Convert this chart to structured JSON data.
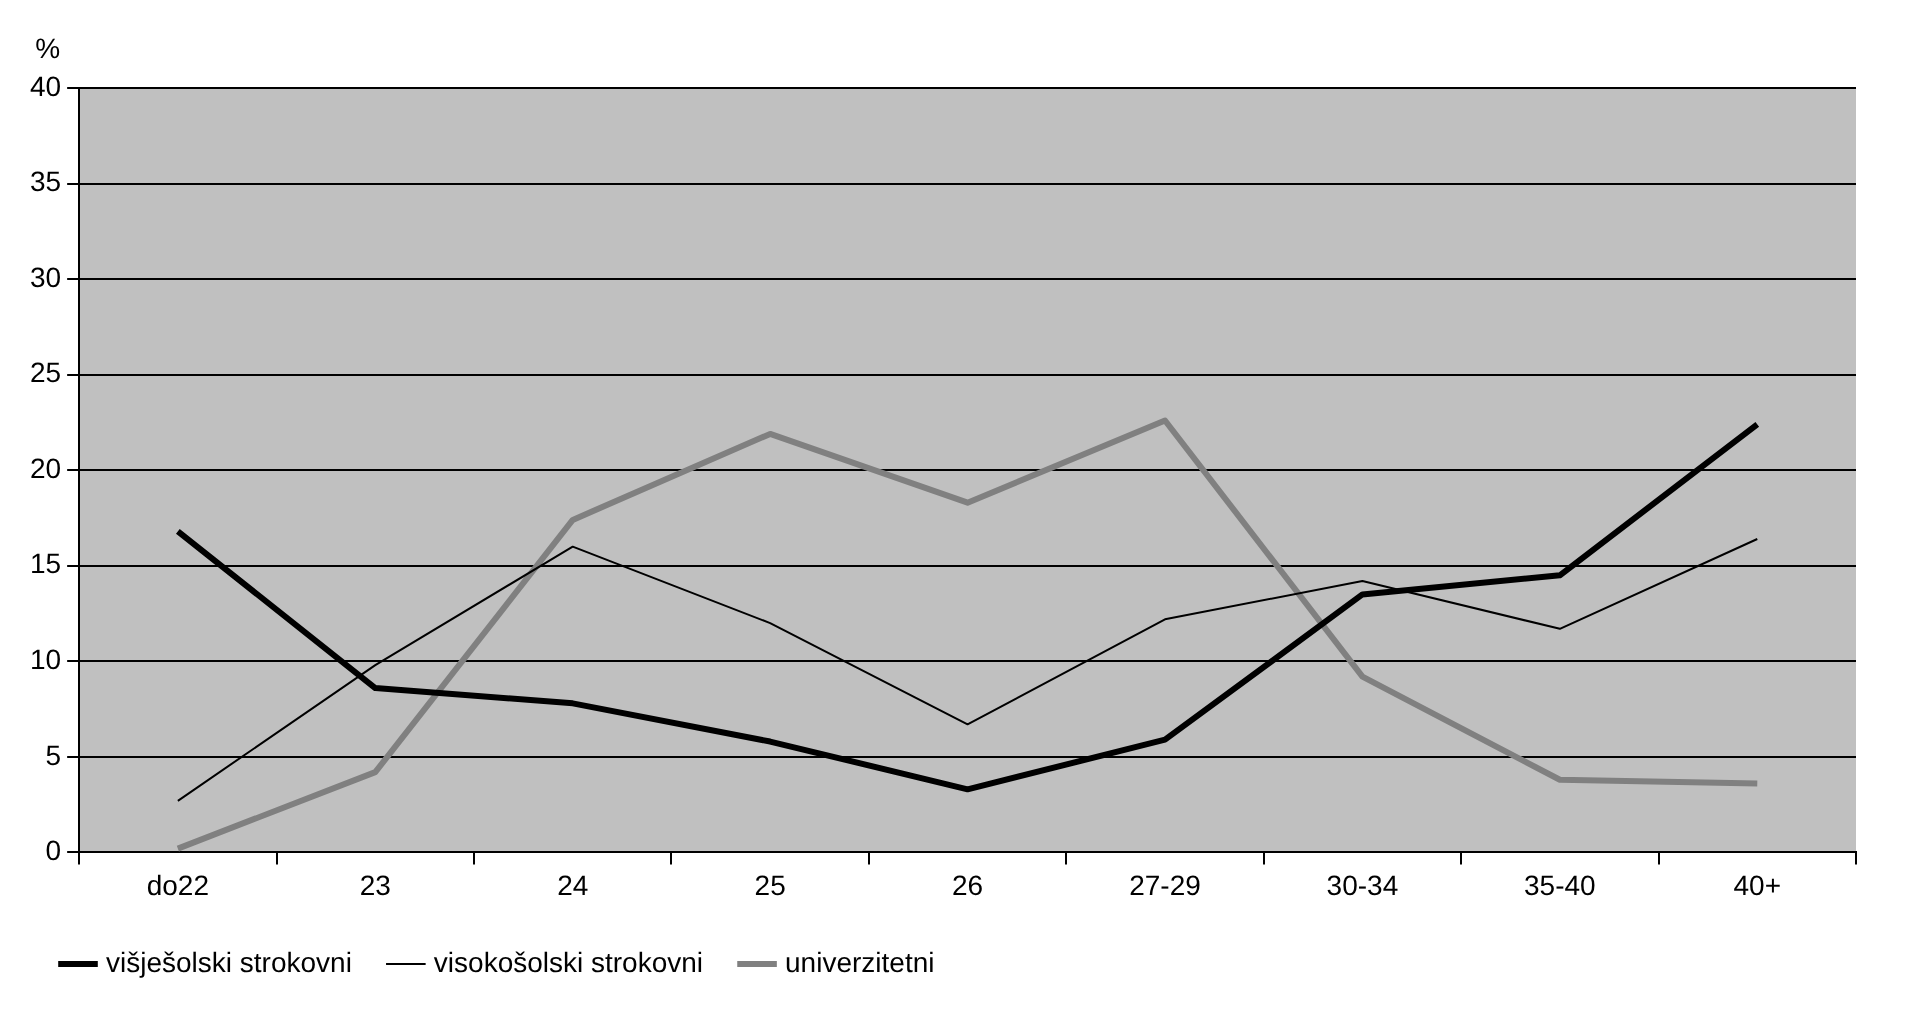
{
  "chart_data": {
    "type": "line",
    "ylabel": "%",
    "categories": [
      "do22",
      "23",
      "24",
      "25",
      "26",
      "27-29",
      "30-34",
      "35-40",
      "40+"
    ],
    "series": [
      {
        "name": "višješolski strokovni",
        "color": "#000000",
        "values": [
          16.8,
          8.6,
          7.8,
          5.8,
          3.3,
          5.9,
          13.5,
          14.5,
          22.4
        ]
      },
      {
        "name": "visokošolski strokovni",
        "color": "#000000",
        "values": [
          2.7,
          9.8,
          16.0,
          12.0,
          6.7,
          12.2,
          14.2,
          11.7,
          16.4
        ]
      },
      {
        "name": "univerzitetni",
        "color": "#808080",
        "values": [
          0.2,
          4.2,
          17.4,
          21.9,
          18.3,
          22.6,
          9.2,
          3.8,
          3.6
        ]
      }
    ],
    "ylim": [
      0,
      40
    ],
    "yticks": [
      0,
      5,
      10,
      15,
      20,
      25,
      30,
      35,
      40
    ],
    "grid": "y",
    "legend": "bottom left",
    "marker": "none",
    "line_style": "solid"
  }
}
